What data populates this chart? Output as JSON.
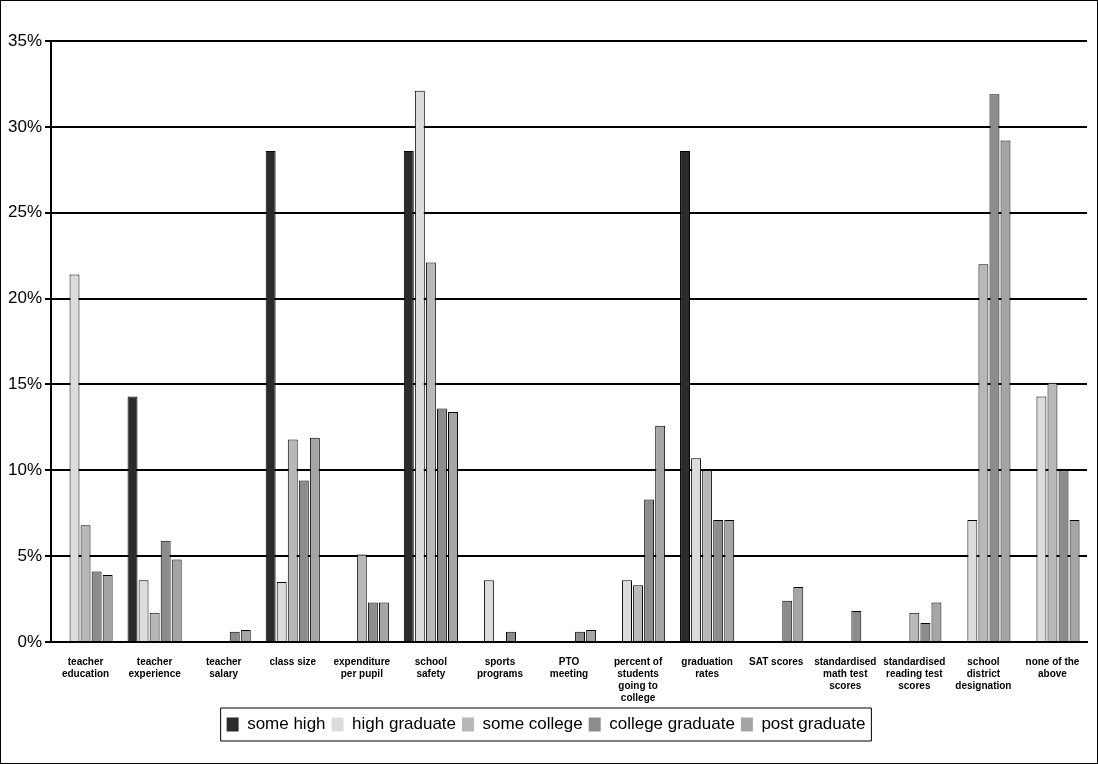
{
  "chart_data": {
    "type": "bar",
    "categories": [
      "teacher education",
      "teacher experience",
      "teacher salary",
      "class size",
      "expenditure per pupil",
      "school safety",
      "sports programs",
      "PTO meeting",
      "percent of students going to college",
      "graduation rates",
      "SAT scores",
      "standardised math test scores",
      "standardised reading test scores",
      "school district designation",
      "none of the above"
    ],
    "series": [
      {
        "name": "some high",
        "color": "#2b2b2b",
        "values": [
          0,
          14.3,
          0,
          28.6,
          0,
          28.6,
          0,
          0,
          0,
          28.6,
          0,
          0,
          0,
          0,
          0
        ]
      },
      {
        "name": "high graduate",
        "color": "#dcdcdc",
        "values": [
          21.4,
          3.6,
          0,
          3.5,
          0,
          32.1,
          3.6,
          0,
          3.6,
          10.7,
          0,
          0,
          0,
          7.1,
          14.3
        ]
      },
      {
        "name": "some college",
        "color": "#b8b8b8",
        "values": [
          6.8,
          1.7,
          0,
          11.8,
          5.1,
          22.1,
          0,
          0,
          3.3,
          10.0,
          0,
          0,
          1.7,
          22.0,
          15.1
        ]
      },
      {
        "name": "college graduate",
        "color": "#8c8c8c",
        "values": [
          4.1,
          5.9,
          0.6,
          9.4,
          2.3,
          13.6,
          0.6,
          0.6,
          8.3,
          7.1,
          2.4,
          1.8,
          1.1,
          31.9,
          10.0
        ]
      },
      {
        "name": "post graduate",
        "color": "#a5a5a5",
        "values": [
          3.9,
          4.8,
          0.7,
          11.9,
          2.3,
          13.4,
          0,
          0.7,
          12.6,
          7.1,
          3.2,
          0,
          2.3,
          29.2,
          7.1
        ]
      }
    ],
    "ylim": [
      0,
      35
    ],
    "yticks": [
      {
        "value": 0,
        "label": "0%"
      },
      {
        "value": 5,
        "label": "5%"
      },
      {
        "value": 10,
        "label": "10%"
      },
      {
        "value": 15,
        "label": "15%"
      },
      {
        "value": 20,
        "label": "20%"
      },
      {
        "value": 25,
        "label": "25%"
      },
      {
        "value": 30,
        "label": "30%"
      },
      {
        "value": 35,
        "label": "35%"
      }
    ],
    "grid": "y",
    "legend": "bottom"
  }
}
